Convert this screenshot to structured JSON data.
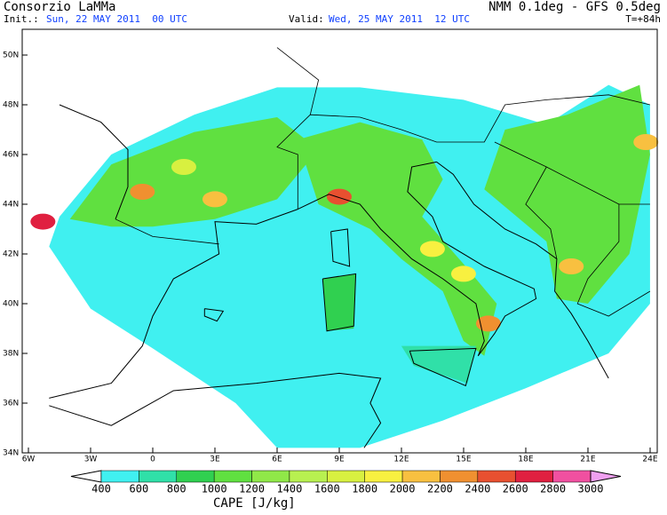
{
  "header": {
    "title": "Consorzio LaMMa",
    "model": "NMM 0.1deg - GFS 0.5deg",
    "init_label": "Init.:",
    "init_value": "Sun, 22 MAY 2011  00 UTC",
    "valid_label": "Valid:",
    "valid_value": "Wed, 25 MAY 2011  12 UTC",
    "lead": "T=+84h"
  },
  "map": {
    "lat_labels": [
      "50N",
      "48N",
      "46N",
      "44N",
      "42N",
      "40N",
      "38N",
      "36N",
      "34N"
    ],
    "lon_labels": [
      "6W",
      "3W",
      "0",
      "3E",
      "6E",
      "9E",
      "12E",
      "15E",
      "18E",
      "21E",
      "24E"
    ]
  },
  "legend": {
    "title": "CAPE [J/kg]",
    "labels": [
      400,
      600,
      800,
      1000,
      1200,
      1400,
      1600,
      1800,
      2000,
      2200,
      2400,
      2600,
      2800,
      3000
    ],
    "colors": [
      "#ffffff",
      "#40f0f0",
      "#30e0a8",
      "#30d050",
      "#60e040",
      "#90e848",
      "#b8f050",
      "#d8f040",
      "#f8f040",
      "#f8c040",
      "#f09030",
      "#e85030",
      "#e02040",
      "#f050a0",
      "#f0a0f0"
    ]
  }
}
